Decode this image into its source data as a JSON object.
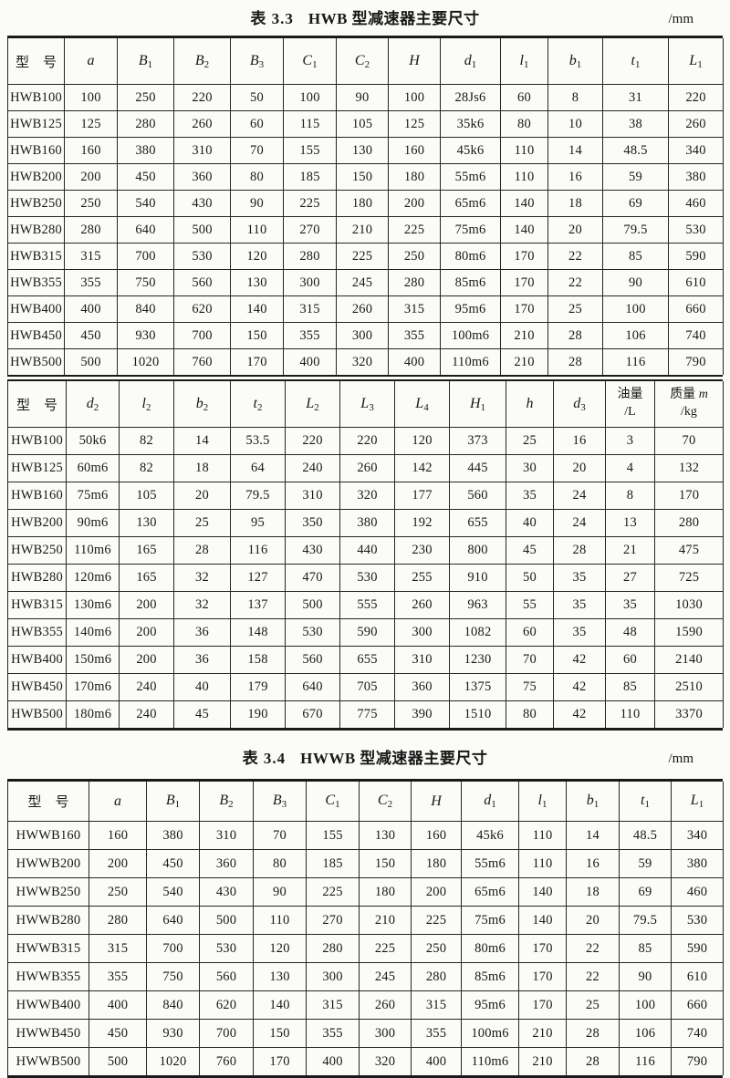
{
  "tables": [
    {
      "caption": {
        "label": "表 3.3",
        "title": "HWB 型减速器主要尺寸",
        "unit": "/mm"
      },
      "sections": [
        {
          "header": [
            {
              "t": "型　号"
            },
            {
              "v": "a"
            },
            {
              "v": "B",
              "s": "1"
            },
            {
              "v": "B",
              "s": "2"
            },
            {
              "v": "B",
              "s": "3"
            },
            {
              "v": "C",
              "s": "1"
            },
            {
              "v": "C",
              "s": "2"
            },
            {
              "v": "H"
            },
            {
              "v": "d",
              "s": "1"
            },
            {
              "v": "l",
              "s": "1"
            },
            {
              "v": "b",
              "s": "1"
            },
            {
              "v": "t",
              "s": "1"
            },
            {
              "v": "L",
              "s": "1"
            }
          ],
          "rows": [
            [
              "HWB100",
              "100",
              "250",
              "220",
              "50",
              "100",
              "90",
              "100",
              "28Js6",
              "60",
              "8",
              "31",
              "220"
            ],
            [
              "HWB125",
              "125",
              "280",
              "260",
              "60",
              "115",
              "105",
              "125",
              "35k6",
              "80",
              "10",
              "38",
              "260"
            ],
            [
              "HWB160",
              "160",
              "380",
              "310",
              "70",
              "155",
              "130",
              "160",
              "45k6",
              "110",
              "14",
              "48.5",
              "340"
            ],
            [
              "HWB200",
              "200",
              "450",
              "360",
              "80",
              "185",
              "150",
              "180",
              "55m6",
              "110",
              "16",
              "59",
              "380"
            ],
            [
              "HWB250",
              "250",
              "540",
              "430",
              "90",
              "225",
              "180",
              "200",
              "65m6",
              "140",
              "18",
              "69",
              "460"
            ],
            [
              "HWB280",
              "280",
              "640",
              "500",
              "110",
              "270",
              "210",
              "225",
              "75m6",
              "140",
              "20",
              "79.5",
              "530"
            ],
            [
              "HWB315",
              "315",
              "700",
              "530",
              "120",
              "280",
              "225",
              "250",
              "80m6",
              "170",
              "22",
              "85",
              "590"
            ],
            [
              "HWB355",
              "355",
              "750",
              "560",
              "130",
              "300",
              "245",
              "280",
              "85m6",
              "170",
              "22",
              "90",
              "610"
            ],
            [
              "HWB400",
              "400",
              "840",
              "620",
              "140",
              "315",
              "260",
              "315",
              "95m6",
              "170",
              "25",
              "100",
              "660"
            ],
            [
              "HWB450",
              "450",
              "930",
              "700",
              "150",
              "355",
              "300",
              "355",
              "100m6",
              "210",
              "28",
              "106",
              "740"
            ],
            [
              "HWB500",
              "500",
              "1020",
              "760",
              "170",
              "400",
              "320",
              "400",
              "110m6",
              "210",
              "28",
              "116",
              "790"
            ]
          ]
        },
        {
          "header": [
            {
              "t": "型　号"
            },
            {
              "v": "d",
              "s": "2"
            },
            {
              "v": "l",
              "s": "2"
            },
            {
              "v": "b",
              "s": "2"
            },
            {
              "v": "t",
              "s": "2"
            },
            {
              "v": "L",
              "s": "2"
            },
            {
              "v": "L",
              "s": "3"
            },
            {
              "v": "L",
              "s": "4"
            },
            {
              "v": "H",
              "s": "1"
            },
            {
              "v": "h"
            },
            {
              "v": "d",
              "s": "3"
            },
            {
              "l1": "油量",
              "l2": "/L"
            },
            {
              "l1": "质量 ",
              "l1v": "m",
              "l2": "/kg"
            }
          ],
          "rows": [
            [
              "HWB100",
              "50k6",
              "82",
              "14",
              "53.5",
              "220",
              "220",
              "120",
              "373",
              "25",
              "16",
              "3",
              "70"
            ],
            [
              "HWB125",
              "60m6",
              "82",
              "18",
              "64",
              "240",
              "260",
              "142",
              "445",
              "30",
              "20",
              "4",
              "132"
            ],
            [
              "HWB160",
              "75m6",
              "105",
              "20",
              "79.5",
              "310",
              "320",
              "177",
              "560",
              "35",
              "24",
              "8",
              "170"
            ],
            [
              "HWB200",
              "90m6",
              "130",
              "25",
              "95",
              "350",
              "380",
              "192",
              "655",
              "40",
              "24",
              "13",
              "280"
            ],
            [
              "HWB250",
              "110m6",
              "165",
              "28",
              "116",
              "430",
              "440",
              "230",
              "800",
              "45",
              "28",
              "21",
              "475"
            ],
            [
              "HWB280",
              "120m6",
              "165",
              "32",
              "127",
              "470",
              "530",
              "255",
              "910",
              "50",
              "35",
              "27",
              "725"
            ],
            [
              "HWB315",
              "130m6",
              "200",
              "32",
              "137",
              "500",
              "555",
              "260",
              "963",
              "55",
              "35",
              "35",
              "1030"
            ],
            [
              "HWB355",
              "140m6",
              "200",
              "36",
              "148",
              "530",
              "590",
              "300",
              "1082",
              "60",
              "35",
              "48",
              "1590"
            ],
            [
              "HWB400",
              "150m6",
              "200",
              "36",
              "158",
              "560",
              "655",
              "310",
              "1230",
              "70",
              "42",
              "60",
              "2140"
            ],
            [
              "HWB450",
              "170m6",
              "240",
              "40",
              "179",
              "640",
              "705",
              "360",
              "1375",
              "75",
              "42",
              "85",
              "2510"
            ],
            [
              "HWB500",
              "180m6",
              "240",
              "45",
              "190",
              "670",
              "775",
              "390",
              "1510",
              "80",
              "42",
              "110",
              "3370"
            ]
          ]
        }
      ]
    },
    {
      "caption": {
        "label": "表 3.4",
        "title": "HWWB 型减速器主要尺寸",
        "unit": "/mm"
      },
      "sections": [
        {
          "header": [
            {
              "t": "型　号"
            },
            {
              "v": "a"
            },
            {
              "v": "B",
              "s": "1"
            },
            {
              "v": "B",
              "s": "2"
            },
            {
              "v": "B",
              "s": "3"
            },
            {
              "v": "C",
              "s": "1"
            },
            {
              "v": "C",
              "s": "2"
            },
            {
              "v": "H"
            },
            {
              "v": "d",
              "s": "1"
            },
            {
              "v": "l",
              "s": "1"
            },
            {
              "v": "b",
              "s": "1"
            },
            {
              "v": "t",
              "s": "1"
            },
            {
              "v": "L",
              "s": "1"
            }
          ],
          "rows": [
            [
              "HWWB160",
              "160",
              "380",
              "310",
              "70",
              "155",
              "130",
              "160",
              "45k6",
              "110",
              "14",
              "48.5",
              "340"
            ],
            [
              "HWWB200",
              "200",
              "450",
              "360",
              "80",
              "185",
              "150",
              "180",
              "55m6",
              "110",
              "16",
              "59",
              "380"
            ],
            [
              "HWWB250",
              "250",
              "540",
              "430",
              "90",
              "225",
              "180",
              "200",
              "65m6",
              "140",
              "18",
              "69",
              "460"
            ],
            [
              "HWWB280",
              "280",
              "640",
              "500",
              "110",
              "270",
              "210",
              "225",
              "75m6",
              "140",
              "20",
              "79.5",
              "530"
            ],
            [
              "HWWB315",
              "315",
              "700",
              "530",
              "120",
              "280",
              "225",
              "250",
              "80m6",
              "170",
              "22",
              "85",
              "590"
            ],
            [
              "HWWB355",
              "355",
              "750",
              "560",
              "130",
              "300",
              "245",
              "280",
              "85m6",
              "170",
              "22",
              "90",
              "610"
            ],
            [
              "HWWB400",
              "400",
              "840",
              "620",
              "140",
              "315",
              "260",
              "315",
              "95m6",
              "170",
              "25",
              "100",
              "660"
            ],
            [
              "HWWB450",
              "450",
              "930",
              "700",
              "150",
              "355",
              "300",
              "355",
              "100m6",
              "210",
              "28",
              "106",
              "740"
            ],
            [
              "HWWB500",
              "500",
              "1020",
              "760",
              "170",
              "400",
              "320",
              "400",
              "110m6",
              "210",
              "28",
              "116",
              "790"
            ]
          ]
        }
      ]
    }
  ]
}
